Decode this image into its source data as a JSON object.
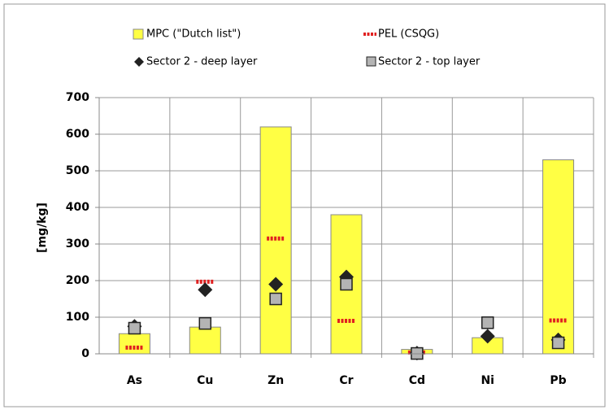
{
  "chart_data": {
    "type": "bar",
    "y_label": "[mg/kg]",
    "categories": [
      "As",
      "Cu",
      "Zn",
      "Cr",
      "Cd",
      "Ni",
      "Pb"
    ],
    "series": [
      {
        "name": "MPC (\"Dutch list\")",
        "kind": "bar",
        "color": "#ffff44",
        "values": [
          55,
          73,
          620,
          380,
          12,
          44,
          530
        ]
      },
      {
        "name": "PEL (CSQG)",
        "kind": "dash",
        "color": "#e02020",
        "values": [
          17,
          197,
          315,
          90,
          3.5,
          null,
          91
        ]
      },
      {
        "name": "Sector 2 - deep layer",
        "kind": "diamond",
        "color": "#222222",
        "values": [
          75,
          175,
          190,
          210,
          2,
          48,
          38
        ]
      },
      {
        "name": "Sector 2 - top layer",
        "kind": "square",
        "color": "#b4b4b4",
        "values": [
          70,
          83,
          150,
          190,
          1,
          85,
          30
        ]
      }
    ],
    "ylim": [
      0,
      700
    ],
    "yticks": [
      0,
      100,
      200,
      300,
      400,
      500,
      600,
      700
    ],
    "grid": true
  }
}
